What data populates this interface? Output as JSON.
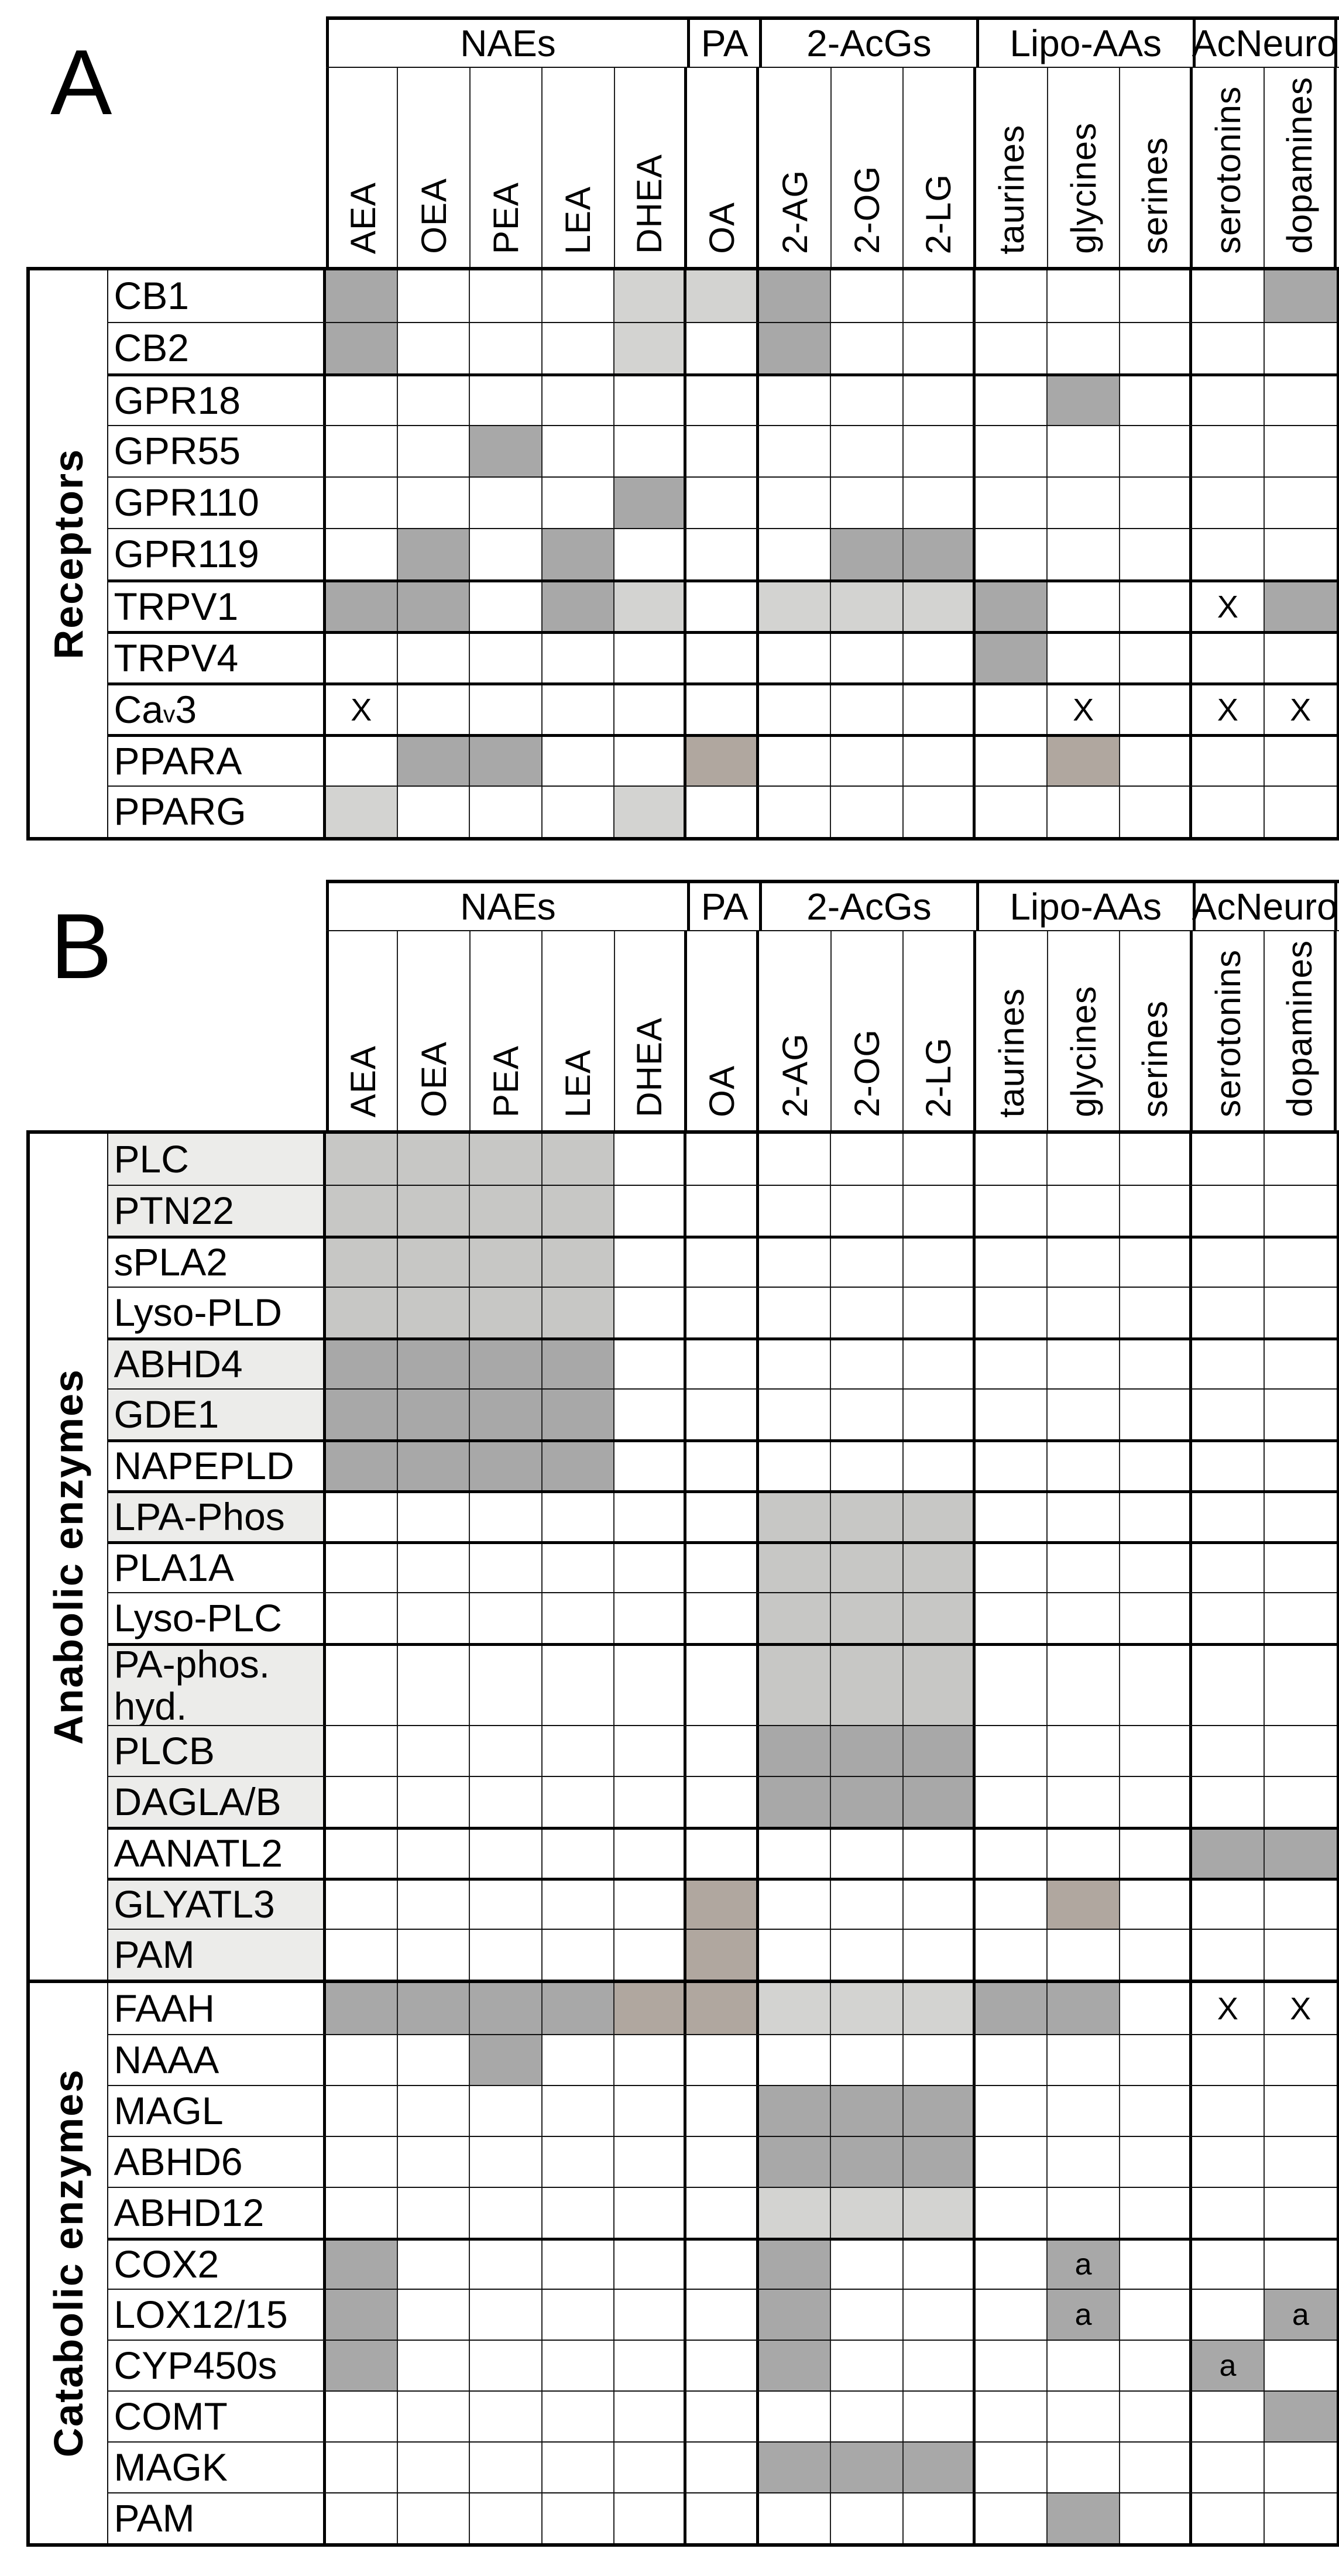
{
  "palette": {
    "medium_gray": "#a8a8a8",
    "light_gray": "#d3d3d1",
    "light_medium_gray": "#c7c7c5",
    "taupe_gray": "#b0a79f",
    "row_label_shade": "#ececea",
    "line_color": "#000000"
  },
  "marks": {
    "cross": "X",
    "annotation": "a"
  },
  "cell_code_legend": {
    "M": "medium_gray",
    "L": "light_gray",
    "C": "light_medium_gray",
    "T": "taupe_gray",
    "X": "cross mark",
    "a": "annotation on medium_gray"
  },
  "column_groups": [
    {
      "label": "NAEs",
      "span": 5
    },
    {
      "label": "PA",
      "span": 1
    },
    {
      "label": "2-AcGs",
      "span": 3
    },
    {
      "label": "Lipo-AAs",
      "span": 3
    },
    {
      "label": "AcNeuro",
      "span": 2
    }
  ],
  "columns": [
    "AEA",
    "OEA",
    "PEA",
    "LEA",
    "DHEA",
    "OA",
    "2-AG",
    "2-OG",
    "2-LG",
    "taurines",
    "glycines",
    "serines",
    "serotonins",
    "dopamines"
  ],
  "panels": [
    {
      "letter": "A",
      "sections": [
        {
          "label": "Receptors",
          "rows": [
            {
              "label": "CB1",
              "cells": [
                "M",
                "",
                "",
                "",
                "L",
                "L",
                "M",
                "",
                "",
                "",
                "",
                "",
                "",
                "M"
              ]
            },
            {
              "label": "CB2",
              "cells": [
                "M",
                "",
                "",
                "",
                "L",
                "",
                "M",
                "",
                "",
                "",
                "",
                "",
                "",
                ""
              ]
            },
            {
              "label": "GPR18",
              "thick_top": true,
              "cells": [
                "",
                "",
                "",
                "",
                "",
                "",
                "",
                "",
                "",
                "",
                "M",
                "",
                "",
                ""
              ]
            },
            {
              "label": "GPR55",
              "cells": [
                "",
                "",
                "M",
                "",
                "",
                "",
                "",
                "",
                "",
                "",
                "",
                "",
                "",
                ""
              ]
            },
            {
              "label": "GPR110",
              "cells": [
                "",
                "",
                "",
                "",
                "M",
                "",
                "",
                "",
                "",
                "",
                "",
                "",
                "",
                ""
              ]
            },
            {
              "label": "GPR119",
              "cells": [
                "",
                "M",
                "",
                "M",
                "",
                "",
                "",
                "M",
                "M",
                "",
                "",
                "",
                "",
                ""
              ]
            },
            {
              "label": "TRPV1",
              "thick_top": true,
              "cells": [
                "M",
                "M",
                "",
                "M",
                "L",
                "",
                "L",
                "L",
                "L",
                "M",
                "",
                "",
                "X",
                "M"
              ]
            },
            {
              "label": "TRPV4",
              "thick_top": true,
              "cells": [
                "",
                "",
                "",
                "",
                "",
                "",
                "",
                "",
                "",
                "M",
                "",
                "",
                "",
                ""
              ]
            },
            {
              "label": "Ca|v|3",
              "thick_top": true,
              "cells": [
                "X",
                "",
                "",
                "",
                "",
                "",
                "",
                "",
                "",
                "",
                "X",
                "",
                "X",
                "X"
              ]
            },
            {
              "label": "PPARA",
              "thick_top": true,
              "cells": [
                "",
                "M",
                "M",
                "",
                "",
                "T",
                "",
                "",
                "",
                "",
                "T",
                "",
                "",
                ""
              ]
            },
            {
              "label": "PPARG",
              "cells": [
                "L",
                "",
                "",
                "",
                "L",
                "",
                "",
                "",
                "",
                "",
                "",
                "",
                "",
                ""
              ]
            }
          ]
        }
      ]
    },
    {
      "letter": "B",
      "sections": [
        {
          "label": "Anabolic enzymes",
          "rows": [
            {
              "label": "PLC",
              "shaded": true,
              "cells": [
                "C",
                "C",
                "C",
                "C",
                "",
                "",
                "",
                "",
                "",
                "",
                "",
                "",
                "",
                ""
              ]
            },
            {
              "label": "PTN22",
              "shaded": true,
              "cells": [
                "C",
                "C",
                "C",
                "C",
                "",
                "",
                "",
                "",
                "",
                "",
                "",
                "",
                "",
                ""
              ]
            },
            {
              "label": "sPLA2",
              "thick_top": true,
              "cells": [
                "C",
                "C",
                "C",
                "C",
                "",
                "",
                "",
                "",
                "",
                "",
                "",
                "",
                "",
                ""
              ]
            },
            {
              "label": "Lyso-PLD",
              "cells": [
                "C",
                "C",
                "C",
                "C",
                "",
                "",
                "",
                "",
                "",
                "",
                "",
                "",
                "",
                ""
              ]
            },
            {
              "label": "ABHD4",
              "thick_top": true,
              "shaded": true,
              "cells": [
                "M",
                "M",
                "M",
                "M",
                "",
                "",
                "",
                "",
                "",
                "",
                "",
                "",
                "",
                ""
              ]
            },
            {
              "label": "GDE1",
              "shaded": true,
              "cells": [
                "M",
                "M",
                "M",
                "M",
                "",
                "",
                "",
                "",
                "",
                "",
                "",
                "",
                "",
                ""
              ]
            },
            {
              "label": "NAPEPLD",
              "thick_top": true,
              "cells": [
                "M",
                "M",
                "M",
                "M",
                "",
                "",
                "",
                "",
                "",
                "",
                "",
                "",
                "",
                ""
              ]
            },
            {
              "label": "LPA-Phos",
              "thick_top": true,
              "shaded": true,
              "cells": [
                "",
                "",
                "",
                "",
                "",
                "",
                "C",
                "C",
                "C",
                "",
                "",
                "",
                "",
                ""
              ]
            },
            {
              "label": "PLA1A",
              "thick_top": true,
              "cells": [
                "",
                "",
                "",
                "",
                "",
                "",
                "C",
                "C",
                "C",
                "",
                "",
                "",
                "",
                ""
              ]
            },
            {
              "label": "Lyso-PLC",
              "cells": [
                "",
                "",
                "",
                "",
                "",
                "",
                "C",
                "C",
                "C",
                "",
                "",
                "",
                "",
                ""
              ]
            },
            {
              "label": "PA-phos.\nhyd.",
              "thick_top": true,
              "shaded": true,
              "tall": true,
              "cells": [
                "",
                "",
                "",
                "",
                "",
                "",
                "C",
                "C",
                "C",
                "",
                "",
                "",
                "",
                ""
              ]
            },
            {
              "label": "PLCB",
              "shaded": true,
              "cells": [
                "",
                "",
                "",
                "",
                "",
                "",
                "M",
                "M",
                "M",
                "",
                "",
                "",
                "",
                ""
              ]
            },
            {
              "label": "DAGLA/B",
              "shaded": true,
              "cells": [
                "",
                "",
                "",
                "",
                "",
                "",
                "M",
                "M",
                "M",
                "",
                "",
                "",
                "",
                ""
              ]
            },
            {
              "label": "AANATL2",
              "thick_top": true,
              "cells": [
                "",
                "",
                "",
                "",
                "",
                "",
                "",
                "",
                "",
                "",
                "",
                "",
                "M",
                "M"
              ]
            },
            {
              "label": "GLYATL3",
              "thick_top": true,
              "shaded": true,
              "cells": [
                "",
                "",
                "",
                "",
                "",
                "T",
                "",
                "",
                "",
                "",
                "T",
                "",
                "",
                ""
              ]
            },
            {
              "label": "PAM",
              "shaded": true,
              "cells": [
                "",
                "",
                "",
                "",
                "",
                "T",
                "",
                "",
                "",
                "",
                "",
                "",
                "",
                ""
              ]
            }
          ]
        },
        {
          "label": "Catabolic enzymes",
          "rows": [
            {
              "label": "FAAH",
              "cells": [
                "M",
                "M",
                "M",
                "M",
                "T",
                "T",
                "L",
                "L",
                "L",
                "M",
                "M",
                "",
                "X",
                "X"
              ]
            },
            {
              "label": "NAAA",
              "cells": [
                "",
                "",
                "M",
                "",
                "",
                "",
                "",
                "",
                "",
                "",
                "",
                "",
                "",
                ""
              ]
            },
            {
              "label": "MAGL",
              "cells": [
                "",
                "",
                "",
                "",
                "",
                "",
                "M",
                "M",
                "M",
                "",
                "",
                "",
                "",
                ""
              ]
            },
            {
              "label": "ABHD6",
              "cells": [
                "",
                "",
                "",
                "",
                "",
                "",
                "M",
                "M",
                "M",
                "",
                "",
                "",
                "",
                ""
              ]
            },
            {
              "label": "ABHD12",
              "cells": [
                "",
                "",
                "",
                "",
                "",
                "",
                "L",
                "L",
                "L",
                "",
                "",
                "",
                "",
                ""
              ]
            },
            {
              "label": "COX2",
              "thick_top": true,
              "cells": [
                "M",
                "",
                "",
                "",
                "",
                "",
                "M",
                "",
                "",
                "",
                "a",
                "",
                "",
                ""
              ]
            },
            {
              "label": "LOX12/15",
              "cells": [
                "M",
                "",
                "",
                "",
                "",
                "",
                "M",
                "",
                "",
                "",
                "a",
                "",
                "",
                "a"
              ]
            },
            {
              "label": "CYP450s",
              "cells": [
                "M",
                "",
                "",
                "",
                "",
                "",
                "M",
                "",
                "",
                "",
                "",
                "",
                "a",
                ""
              ]
            },
            {
              "label": "COMT",
              "cells": [
                "",
                "",
                "",
                "",
                "",
                "",
                "",
                "",
                "",
                "",
                "",
                "",
                "",
                "M"
              ]
            },
            {
              "label": "MAGK",
              "cells": [
                "",
                "",
                "",
                "",
                "",
                "",
                "M",
                "M",
                "M",
                "",
                "",
                "",
                "",
                ""
              ]
            },
            {
              "label": "PAM",
              "cells": [
                "",
                "",
                "",
                "",
                "",
                "",
                "",
                "",
                "",
                "",
                "M",
                "",
                "",
                ""
              ]
            }
          ]
        }
      ]
    }
  ]
}
